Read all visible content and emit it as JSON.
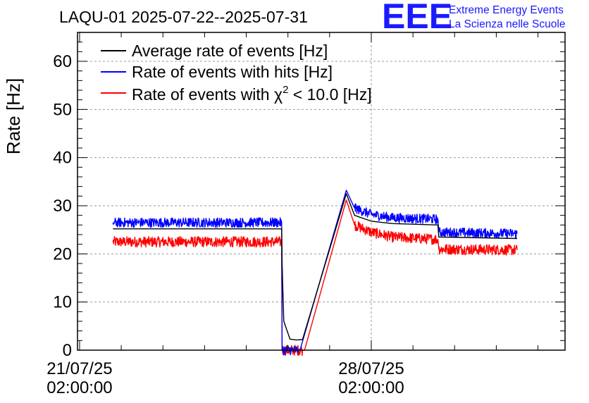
{
  "chart_data": {
    "type": "line",
    "title": "LAQU-01 2025-07-22--2025-07-31",
    "ylabel": "Rate [Hz]",
    "xlabel": "",
    "ylim": [
      0,
      66
    ],
    "yticks": [
      0,
      10,
      20,
      30,
      40,
      50,
      60
    ],
    "x_tick_labels": [
      {
        "date": "21/07/25",
        "time": "02:00:00"
      },
      {
        "date": "28/07/25",
        "time": "02:00:00"
      }
    ],
    "grid": true,
    "legend_position": "top-left",
    "legend": [
      {
        "label": "Average rate of events [Hz]",
        "color": "#000000"
      },
      {
        "label": "Rate of events with hits [Hz]",
        "color": "#0000ff"
      },
      {
        "label_prefix": "Rate of events with χ",
        "label_sup": "2",
        "label_suffix": " < 10.0 [Hz]",
        "color": "#ff0000"
      }
    ],
    "x_unit": "days since 21/07/25 02:00:00",
    "xlim": [
      -0.05,
      11.65
    ],
    "series": [
      {
        "name": "Average rate of events [Hz]",
        "color": "#000000",
        "points": [
          [
            0.8,
            25.2
          ],
          [
            4.85,
            25.2
          ],
          [
            4.86,
            18
          ],
          [
            4.9,
            6
          ],
          [
            5.05,
            2.3
          ],
          [
            5.2,
            2.1
          ],
          [
            5.35,
            2.2
          ],
          [
            6.4,
            32.5
          ],
          [
            6.6,
            28
          ],
          [
            7.0,
            26.8
          ],
          [
            7.5,
            26.3
          ],
          [
            8.6,
            26
          ],
          [
            8.62,
            23.5
          ],
          [
            10.5,
            23.2
          ]
        ]
      },
      {
        "name": "Rate of events with hits [Hz]",
        "color": "#0000ff",
        "noise": 1.0,
        "points": [
          [
            0.8,
            26.5
          ],
          [
            4.85,
            26.5
          ],
          [
            4.86,
            0
          ],
          [
            5.25,
            0
          ],
          [
            5.3,
            0.3
          ],
          [
            6.4,
            33.2
          ],
          [
            6.6,
            29.5
          ],
          [
            7.0,
            28.2
          ],
          [
            7.5,
            27.5
          ],
          [
            8.6,
            27.2
          ],
          [
            8.62,
            24.5
          ],
          [
            10.5,
            24.2
          ]
        ]
      },
      {
        "name": "Rate of events with χ2 < 10.0 [Hz]",
        "color": "#ff0000",
        "noise": 1.1,
        "points": [
          [
            0.8,
            22.5
          ],
          [
            4.85,
            22.5
          ],
          [
            4.86,
            0
          ],
          [
            5.35,
            0
          ],
          [
            5.4,
            0
          ],
          [
            6.4,
            31.2
          ],
          [
            6.6,
            26
          ],
          [
            7.0,
            24.5
          ],
          [
            7.5,
            23.5
          ],
          [
            8.6,
            23
          ],
          [
            8.62,
            21
          ],
          [
            10.5,
            20.8
          ]
        ]
      }
    ]
  },
  "logo": {
    "letters": "EEE",
    "line1": "Extreme Energy Events",
    "line2": "La Scienza nelle Scuole"
  }
}
